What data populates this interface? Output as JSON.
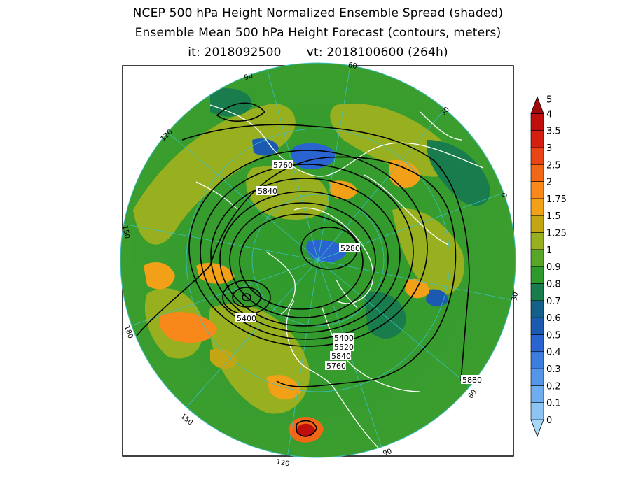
{
  "title": {
    "line1": "NCEP 500 hPa Height Normalized Ensemble Spread (shaded)",
    "line2": "Ensemble Mean 500 hPa Height Forecast (contours, meters)",
    "init": "it: 2018092500",
    "valid": "vt: 2018100600 (264h)"
  },
  "colorbar": {
    "levels": [
      "0",
      "0.1",
      "0.2",
      "0.3",
      "0.4",
      "0.5",
      "0.6",
      "0.7",
      "0.8",
      "0.9",
      "1",
      "1.25",
      "1.5",
      "1.75",
      "2",
      "2.5",
      "3",
      "3.5",
      "4",
      "5"
    ],
    "colors": [
      "#a8d8f8",
      "#8cc4f4",
      "#6eaef0",
      "#5496e8",
      "#3c7ede",
      "#2a64d0",
      "#1b5ab0",
      "#14608a",
      "#197c4c",
      "#2f9a2c",
      "#58a628",
      "#98b020",
      "#c4a614",
      "#f2a018",
      "#f8881a",
      "#f06816",
      "#e84414",
      "#d42010",
      "#c00e0c",
      "#a00a0a"
    ]
  },
  "longitude_labels": [
    "60",
    "30",
    "0",
    "30",
    "60",
    "90",
    "120",
    "150",
    "180",
    "150",
    "120",
    "90"
  ],
  "contour_labels": [
    "5760",
    "5840",
    "5280",
    "5400",
    "5400",
    "5520",
    "5840",
    "5760",
    "5880"
  ]
}
